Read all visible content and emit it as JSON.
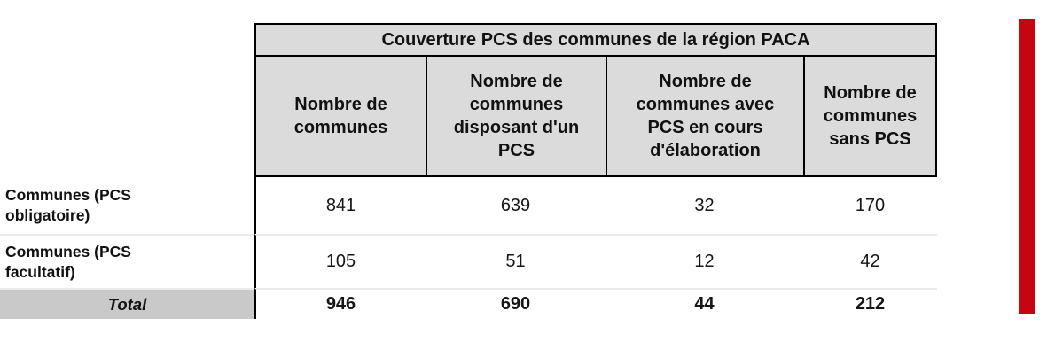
{
  "table": {
    "title": "Couverture PCS des communes de la région PACA",
    "col_headers": [
      "Nombre de\ncommunes",
      "Nombre de\ncommunes\ndisposant d'un\nPCS",
      "Nombre de\ncommunes avec\nPCS en cours\nd'élaboration",
      "Nombre de\ncommunes\nsans PCS"
    ],
    "rows": [
      {
        "label": "Communes (PCS\nobligatoire)",
        "values": [
          "841",
          "639",
          "32",
          "170"
        ]
      },
      {
        "label": "Communes (PCS\nfacultatif)",
        "values": [
          "105",
          "51",
          "12",
          "42"
        ]
      }
    ],
    "total": {
      "label": "Total",
      "values": [
        "946",
        "690",
        "44",
        "212"
      ]
    }
  },
  "chart_data": {
    "type": "table",
    "title": "Couverture PCS des communes de la région PACA",
    "columns": [
      "Nombre de communes",
      "Nombre de communes disposant d'un PCS",
      "Nombre de communes avec PCS en cours d'élaboration",
      "Nombre de communes sans PCS"
    ],
    "rows": [
      {
        "label": "Communes (PCS obligatoire)",
        "values": [
          841,
          639,
          32,
          170
        ]
      },
      {
        "label": "Communes (PCS facultatif)",
        "values": [
          105,
          51,
          12,
          42
        ]
      },
      {
        "label": "Total",
        "values": [
          946,
          690,
          44,
          212
        ]
      }
    ]
  },
  "colors": {
    "header_bg": "#dbdbdb",
    "total_label_bg": "#c9c9c9",
    "border": "#000000",
    "row_line": "#ebebeb",
    "red_bar": "#c5060f"
  }
}
